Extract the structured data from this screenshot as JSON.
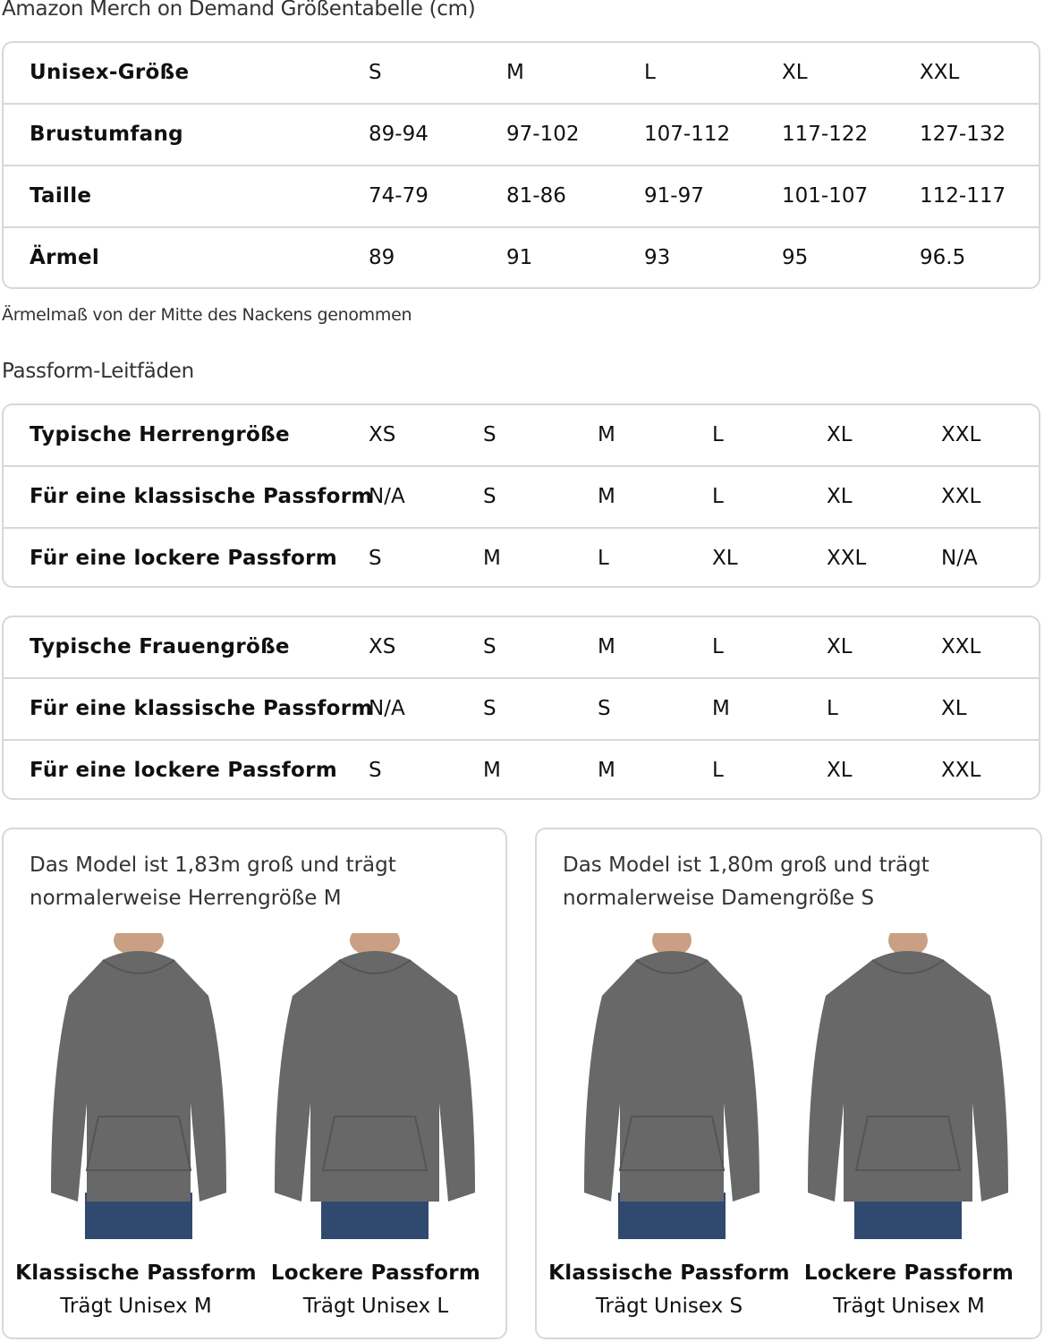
{
  "title": "Amazon Merch on Demand Größentabelle (cm)",
  "unisex_table": {
    "rows": [
      {
        "label": "Unisex-Größe",
        "values": [
          "S",
          "M",
          "L",
          "XL",
          "XXL"
        ]
      },
      {
        "label": "Brustumfang",
        "values": [
          "89-94",
          "97-102",
          "107-112",
          "117-122",
          "127-132"
        ]
      },
      {
        "label": "Taille",
        "values": [
          "74-79",
          "81-86",
          "91-97",
          "101-107",
          "112-117"
        ]
      },
      {
        "label": "Ärmel",
        "values": [
          "89",
          "91",
          "93",
          "95",
          "96.5"
        ]
      }
    ]
  },
  "note": "Ärmelmaß von der Mitte des Nackens genommen",
  "fit_title": "Passform-Leitfäden",
  "men_table": {
    "rows": [
      {
        "label": "Typische Herrengröße",
        "values": [
          "XS",
          "S",
          "M",
          "L",
          "XL",
          "XXL"
        ]
      },
      {
        "label": "Für eine klassische Passform",
        "values": [
          "N/A",
          "S",
          "M",
          "L",
          "XL",
          "XXL"
        ]
      },
      {
        "label": "Für eine lockere Passform",
        "values": [
          "S",
          "M",
          "L",
          "XL",
          "XXL",
          "N/A"
        ]
      }
    ]
  },
  "women_table": {
    "rows": [
      {
        "label": "Typische Frauengröße",
        "values": [
          "XS",
          "S",
          "M",
          "L",
          "XL",
          "XXL"
        ]
      },
      {
        "label": "Für eine klassische Passform",
        "values": [
          "N/A",
          "S",
          "S",
          "M",
          "L",
          "XL"
        ]
      },
      {
        "label": "Für eine lockere Passform",
        "values": [
          "S",
          "M",
          "M",
          "L",
          "XL",
          "XXL"
        ]
      }
    ]
  },
  "cards": [
    {
      "text": "Das Model ist 1,83m groß und trägt normalerweise Herrengröße M",
      "fits": [
        {
          "title": "Klassische Passform",
          "size": "Trägt Unisex M"
        },
        {
          "title": "Lockere Passform",
          "size": "Trägt Unisex L"
        }
      ]
    },
    {
      "text": "Das Model ist 1,80m groß und trägt normalerweise Damengröße S",
      "fits": [
        {
          "title": "Klassische Passform",
          "size": "Trägt Unisex S"
        },
        {
          "title": "Lockere Passform",
          "size": "Trägt Unisex M"
        }
      ]
    }
  ],
  "colors": {
    "hoodie": "#686868",
    "jeans": "#2f4a6e",
    "border": "#d5d9d9"
  }
}
